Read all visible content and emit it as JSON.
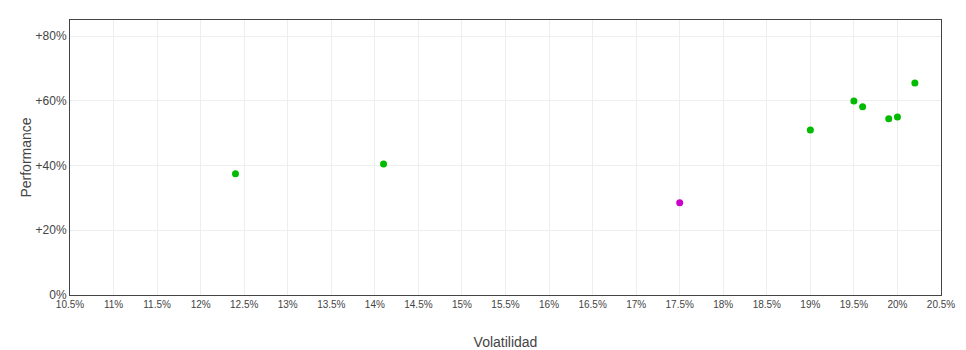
{
  "chart_data": {
    "type": "scatter",
    "x_label": "Volatilidad",
    "y_label": "Performance",
    "series": [
      {
        "color": "#00bb00",
        "x": [
          0.124,
          0.141,
          0.19,
          0.195,
          0.196,
          0.199,
          0.2,
          0.202
        ],
        "values": [
          0.375,
          0.405,
          0.51,
          0.6,
          0.582,
          0.545,
          0.55,
          0.655
        ]
      },
      {
        "color": "#cc00cc",
        "x": [
          0.175
        ],
        "values": [
          0.285
        ]
      }
    ],
    "xlim": [
      0.105,
      0.205
    ],
    "ylim": [
      0.0,
      0.85
    ],
    "xticks": [
      {
        "value": 0.105,
        "label": "10.5%"
      },
      {
        "value": 0.11,
        "label": "11%"
      },
      {
        "value": 0.115,
        "label": "11.5%"
      },
      {
        "value": 0.12,
        "label": "12%"
      },
      {
        "value": 0.125,
        "label": "12.5%"
      },
      {
        "value": 0.13,
        "label": "13%"
      },
      {
        "value": 0.135,
        "label": "13.5%"
      },
      {
        "value": 0.14,
        "label": "14%"
      },
      {
        "value": 0.145,
        "label": "14.5%"
      },
      {
        "value": 0.15,
        "label": "15%"
      },
      {
        "value": 0.155,
        "label": "15.5%"
      },
      {
        "value": 0.16,
        "label": "16%"
      },
      {
        "value": 0.165,
        "label": "16.5%"
      },
      {
        "value": 0.17,
        "label": "17%"
      },
      {
        "value": 0.175,
        "label": "17.5%"
      },
      {
        "value": 0.18,
        "label": "18%"
      },
      {
        "value": 0.185,
        "label": "18.5%"
      },
      {
        "value": 0.19,
        "label": "19%"
      },
      {
        "value": 0.195,
        "label": "19.5%"
      },
      {
        "value": 0.2,
        "label": "20%"
      },
      {
        "value": 0.205,
        "label": "20.5%"
      }
    ],
    "yticks": [
      {
        "value": 0.0,
        "label": "0%"
      },
      {
        "value": 0.2,
        "label": "+20%"
      },
      {
        "value": 0.4,
        "label": "+40%"
      },
      {
        "value": 0.6,
        "label": "+60%"
      },
      {
        "value": 0.8,
        "label": "+80%"
      }
    ],
    "grid": true
  }
}
